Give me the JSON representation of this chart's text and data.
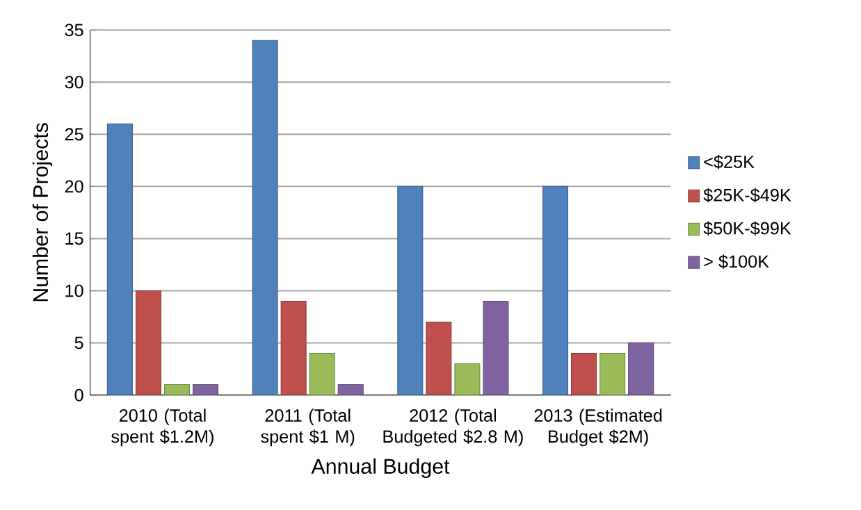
{
  "chart_data": {
    "type": "bar",
    "xlabel": "Annual Budget",
    "ylabel": "Number of Projects",
    "categories": [
      "2010 (Total spent $1.2M)",
      "2011 (Total spent $1 M)",
      "2012 (Total Budgeted $2.8 M)",
      "2013 (Estimated Budget $2M)"
    ],
    "series": [
      {
        "name": "<$25K",
        "color": "#4f81bd",
        "values": [
          26,
          34,
          20,
          20
        ]
      },
      {
        "name": "$25K-$49K",
        "color": "#c0504d",
        "values": [
          10,
          9,
          7,
          4
        ]
      },
      {
        "name": "$50K-$99K",
        "color": "#9bbb59",
        "values": [
          1,
          4,
          3,
          4
        ]
      },
      {
        "name": "> $100K",
        "color": "#8064a2",
        "values": [
          1,
          1,
          9,
          5
        ]
      }
    ],
    "ylim": [
      0,
      35
    ],
    "yticks": [
      0,
      5,
      10,
      15,
      20,
      25,
      30,
      35
    ],
    "grid": "y",
    "legend": "right"
  }
}
